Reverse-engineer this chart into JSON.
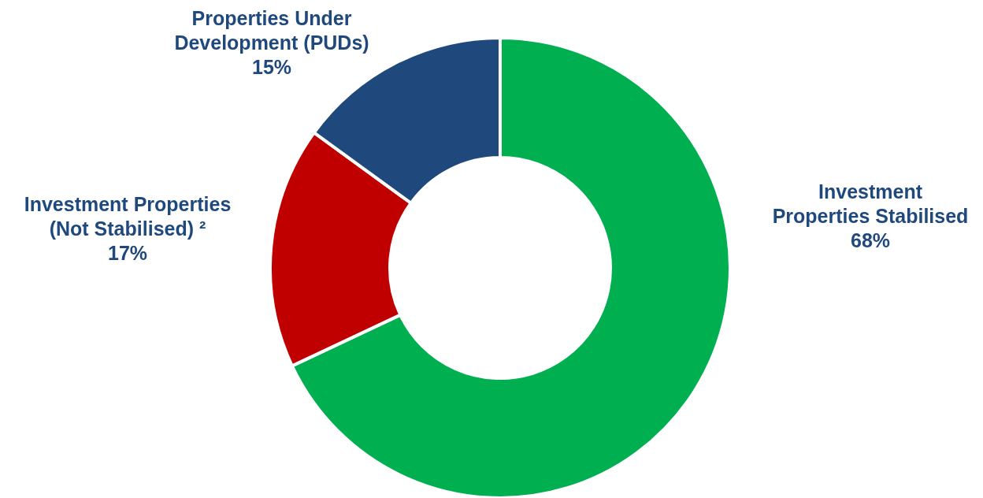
{
  "chart_data": {
    "type": "donut",
    "categories": [
      "Investment Properties Stabilised",
      "Investment Properties (Not Stabilised) ²",
      "Properties Under Development (PUDs)"
    ],
    "values": [
      68,
      17,
      15
    ],
    "colors": [
      "#00b050",
      "#c00000",
      "#1f497d"
    ],
    "value_labels": [
      "68%",
      "17%",
      "15%"
    ]
  }
}
